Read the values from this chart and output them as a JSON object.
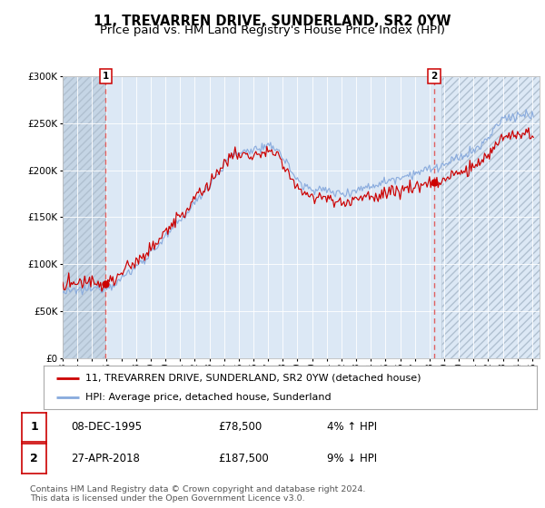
{
  "title": "11, TREVARREN DRIVE, SUNDERLAND, SR2 0YW",
  "subtitle": "Price paid vs. HM Land Registry's House Price Index (HPI)",
  "ylim": [
    0,
    300000
  ],
  "yticks": [
    0,
    50000,
    100000,
    150000,
    200000,
    250000,
    300000
  ],
  "ytick_labels": [
    "£0",
    "£50K",
    "£100K",
    "£150K",
    "£200K",
    "£250K",
    "£300K"
  ],
  "x_start_year": 1993,
  "x_end_year": 2025,
  "sale1_date_num": 1995.92,
  "sale1_price": 78500,
  "sale1_label": "08-DEC-1995",
  "sale1_pct": "4% ↑ HPI",
  "sale2_date_num": 2018.32,
  "sale2_price": 187500,
  "sale2_label": "27-APR-2018",
  "sale2_pct": "9% ↓ HPI",
  "line_color_red": "#cc0000",
  "line_color_blue": "#88aadd",
  "bg_color_main": "#dce8f5",
  "bg_color_hatch": "#c5d5e5",
  "grid_color": "#ffffff",
  "dashed_line_color": "#e06060",
  "marker_color": "#cc0000",
  "legend_label_red": "11, TREVARREN DRIVE, SUNDERLAND, SR2 0YW (detached house)",
  "legend_label_blue": "HPI: Average price, detached house, Sunderland",
  "footer": "Contains HM Land Registry data © Crown copyright and database right 2024.\nThis data is licensed under the Open Government Licence v3.0.",
  "title_fontsize": 10.5,
  "subtitle_fontsize": 9.5,
  "tick_fontsize": 7.5,
  "legend_fontsize": 8,
  "annotation_fontsize": 8.5
}
